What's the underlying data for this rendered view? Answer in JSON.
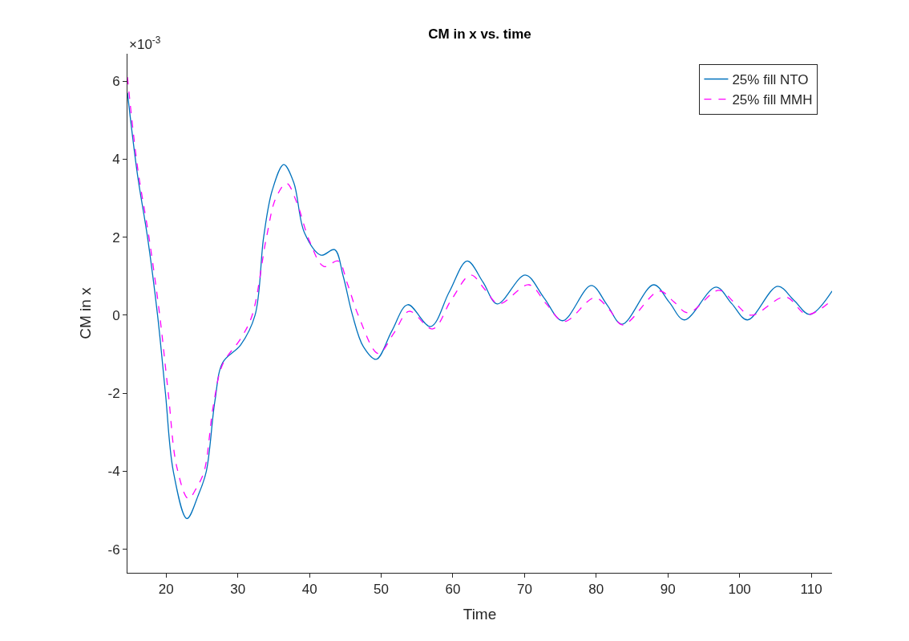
{
  "chart_data": {
    "type": "line",
    "title": "CM in x vs. time",
    "xlabel": "Time",
    "ylabel": "CM in x",
    "annotations": [
      "×10$^{-3}$"
    ],
    "xlim": [
      14.6,
      112.9
    ],
    "xticks": [
      20,
      30,
      40,
      50,
      60,
      70,
      80,
      90,
      100,
      110
    ],
    "ylim": [
      -6.6,
      6.7
    ],
    "yticks": [
      -6,
      -4,
      -2,
      0,
      2,
      4,
      6
    ],
    "legend": "top right",
    "marker": "none",
    "series": [
      {
        "name": "25% fill NTO",
        "color": "#0072bd",
        "line_style": "solid",
        "x": [
          14.6,
          16,
          17.4,
          18.8,
          19.9,
          21,
          22.9,
          24.5,
          25.6,
          26.8,
          27.9,
          30.4,
          32.4,
          33.6,
          34.8,
          36.4,
          37.8,
          39.3,
          41.6,
          43.5,
          44.7,
          46,
          47.5,
          49.3,
          51.5,
          53.7,
          56.9,
          59.5,
          62,
          64.2,
          66.2,
          70.1,
          72.7,
          75.3,
          79.3,
          81.5,
          83.6,
          88,
          90.2,
          92.3,
          96.7,
          98.9,
          101.1,
          105.3,
          107.6,
          109.8,
          112.9
        ],
        "values": [
          5.7,
          3.6,
          2,
          0,
          -2,
          -4,
          -5.21,
          -4.6,
          -4,
          -2.2,
          -1.21,
          -0.76,
          0,
          2,
          3.2,
          3.86,
          3.4,
          2.11,
          1.54,
          1.68,
          1.0,
          0,
          -0.8,
          -1.13,
          -0.4,
          0.27,
          -0.29,
          0.6,
          1.39,
          0.85,
          0.29,
          1.03,
          0.45,
          -0.14,
          0.76,
          0.27,
          -0.23,
          0.78,
          0.33,
          -0.12,
          0.72,
          0.3,
          -0.12,
          0.74,
          0.38,
          0.02,
          0.62
        ]
      },
      {
        "name": "25% fill MMH",
        "color": "#ff00ff",
        "line_style": "dashed",
        "x": [
          14.6,
          16,
          17.6,
          19.1,
          20.3,
          21.5,
          23.1,
          24.3,
          25.3,
          26.6,
          27.9,
          30.4,
          32,
          34,
          35.3,
          36.8,
          38.2,
          40,
          42,
          44,
          45.3,
          46.8,
          49.6,
          51.8,
          53.9,
          57.2,
          59.8,
          62.5,
          64.5,
          66.4,
          70.6,
          73,
          75.5,
          79.8,
          81.8,
          83.7,
          88.8,
          90.8,
          92.8,
          97.1,
          99.3,
          101.6,
          106.4,
          109.4,
          112.9
        ],
        "values": [
          6.1,
          3.8,
          2,
          0,
          -2,
          -3.9,
          -4.7,
          -4.4,
          -4,
          -2.3,
          -1.25,
          -0.6,
          0,
          2,
          3.0,
          3.38,
          2.9,
          1.9,
          1.25,
          1.39,
          0.8,
          0,
          -0.98,
          -0.45,
          0.1,
          -0.35,
          0.4,
          1.03,
          0.65,
          0.29,
          0.78,
          0.3,
          -0.16,
          0.45,
          0.15,
          -0.25,
          0.62,
          0.35,
          0.06,
          0.64,
          0.32,
          0,
          0.47,
          0.02,
          0.39
        ]
      }
    ]
  }
}
